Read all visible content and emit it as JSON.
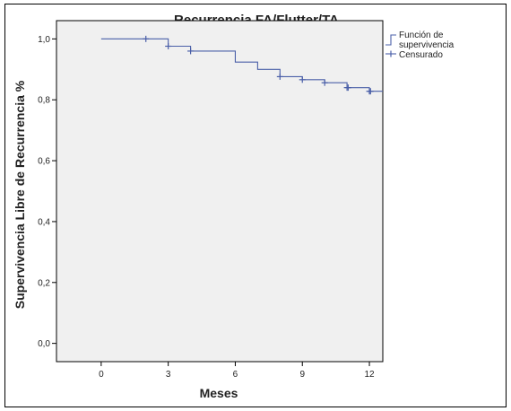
{
  "chart_data": {
    "type": "line",
    "title": "Recurrencia FA/Flutter/TA",
    "xlabel": "Meses",
    "ylabel": "Supervivencia Libre de Recurrencia %",
    "xlim": [
      -2,
      12.6
    ],
    "ylim": [
      -0.06,
      1.06
    ],
    "x_ticks": [
      {
        "value": 0,
        "label": "0"
      },
      {
        "value": 3,
        "label": "3"
      },
      {
        "value": 6,
        "label": "6"
      },
      {
        "value": 9,
        "label": "9"
      },
      {
        "value": 12,
        "label": "12"
      }
    ],
    "y_ticks": [
      {
        "value": 0.0,
        "label": "0,0"
      },
      {
        "value": 0.2,
        "label": "0,2"
      },
      {
        "value": 0.4,
        "label": "0,4"
      },
      {
        "value": 0.6,
        "label": "0,6"
      },
      {
        "value": 0.8,
        "label": "0,8"
      },
      {
        "value": 1.0,
        "label": "1,0"
      }
    ],
    "series": [
      {
        "name": "Función de supervivencia",
        "kind": "step",
        "color": "#4a5fa8",
        "steps": [
          {
            "x": 0,
            "y": 1.0
          },
          {
            "x": 3,
            "y": 0.976
          },
          {
            "x": 4,
            "y": 0.96
          },
          {
            "x": 6,
            "y": 0.924
          },
          {
            "x": 7,
            "y": 0.9
          },
          {
            "x": 8,
            "y": 0.876
          },
          {
            "x": 9,
            "y": 0.866
          },
          {
            "x": 10,
            "y": 0.856
          },
          {
            "x": 11,
            "y": 0.84
          },
          {
            "x": 12,
            "y": 0.828
          },
          {
            "x": 12.6,
            "y": 0.828
          }
        ]
      },
      {
        "name": "Censurado",
        "kind": "censored",
        "color": "#4a5fa8",
        "points": [
          {
            "x": 2,
            "y": 1.0
          },
          {
            "x": 3,
            "y": 0.976
          },
          {
            "x": 4,
            "y": 0.96
          },
          {
            "x": 8,
            "y": 0.876
          },
          {
            "x": 9,
            "y": 0.866
          },
          {
            "x": 10,
            "y": 0.856
          },
          {
            "x": 11,
            "y": 0.84
          },
          {
            "x": 11.05,
            "y": 0.84
          },
          {
            "x": 12,
            "y": 0.828
          },
          {
            "x": 12.05,
            "y": 0.828
          }
        ]
      }
    ],
    "legend": {
      "placement": "right",
      "entries": [
        {
          "line1": "Función de",
          "line2": "supervivencia"
        },
        {
          "line1": "Censurado",
          "line2": ""
        }
      ]
    },
    "colors": {
      "plot_background": "#f0f0f0",
      "line": "#4a5fa8"
    }
  }
}
